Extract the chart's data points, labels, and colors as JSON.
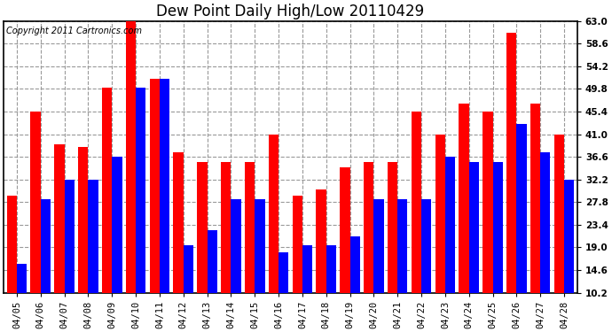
{
  "title": "Dew Point Daily High/Low 20110429",
  "copyright": "Copyright 2011 Cartronics.com",
  "dates": [
    "04/05",
    "04/06",
    "04/07",
    "04/08",
    "04/09",
    "04/10",
    "04/11",
    "04/12",
    "04/13",
    "04/14",
    "04/15",
    "04/16",
    "04/17",
    "04/18",
    "04/19",
    "04/20",
    "04/21",
    "04/22",
    "04/23",
    "04/24",
    "04/25",
    "04/26",
    "04/27",
    "04/28"
  ],
  "highs": [
    29.0,
    45.4,
    39.0,
    38.6,
    50.0,
    63.0,
    51.8,
    37.4,
    35.6,
    35.6,
    35.6,
    41.0,
    29.0,
    30.2,
    34.6,
    35.6,
    35.6,
    45.4,
    41.0,
    47.0,
    45.4,
    60.8,
    47.0,
    41.0
  ],
  "lows": [
    15.8,
    28.4,
    32.2,
    32.2,
    36.6,
    50.0,
    51.8,
    19.4,
    22.4,
    28.4,
    28.4,
    18.0,
    19.4,
    19.4,
    21.2,
    28.4,
    28.4,
    28.4,
    36.6,
    35.6,
    35.6,
    43.0,
    37.4,
    32.2
  ],
  "high_color": "#ff0000",
  "low_color": "#0000ff",
  "bg_color": "#ffffff",
  "plot_bg_color": "#ffffff",
  "grid_color": "#999999",
  "ymin": 10.2,
  "ymax": 63.0,
  "yticks": [
    10.2,
    14.6,
    19.0,
    23.4,
    27.8,
    32.2,
    36.6,
    41.0,
    45.4,
    49.8,
    54.2,
    58.6,
    63.0
  ],
  "title_fontsize": 12,
  "copyright_fontsize": 7,
  "tick_fontsize": 7.5,
  "bar_width": 0.42
}
